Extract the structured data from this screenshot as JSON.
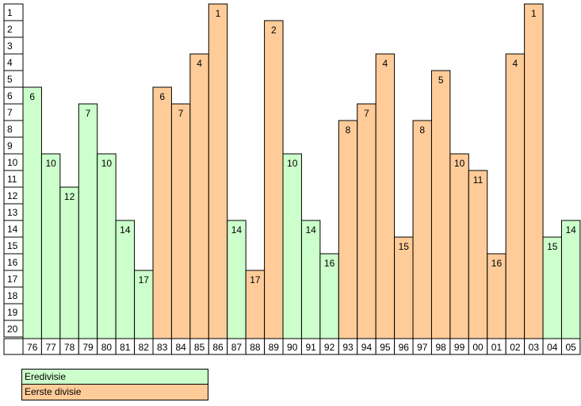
{
  "chart_data": {
    "type": "bar",
    "title": "",
    "xlabel": "",
    "ylabel": "",
    "ylim": [
      1,
      20
    ],
    "y_ticks": [
      "1",
      "2",
      "3",
      "4",
      "5",
      "6",
      "7",
      "8",
      "9",
      "10",
      "11",
      "12",
      "13",
      "14",
      "15",
      "16",
      "17",
      "18",
      "19",
      "20"
    ],
    "y_inverted": true,
    "categories": [
      "76",
      "77",
      "78",
      "79",
      "80",
      "81",
      "82",
      "83",
      "84",
      "85",
      "86",
      "87",
      "88",
      "89",
      "90",
      "91",
      "92",
      "93",
      "94",
      "95",
      "96",
      "97",
      "98",
      "99",
      "00",
      "01",
      "02",
      "03",
      "04",
      "05"
    ],
    "values": [
      6,
      10,
      12,
      7,
      10,
      14,
      17,
      6,
      7,
      4,
      1,
      14,
      17,
      2,
      10,
      14,
      16,
      8,
      7,
      4,
      15,
      8,
      5,
      10,
      11,
      16,
      4,
      1,
      15,
      14
    ],
    "league": [
      "Eredivisie",
      "Eredivisie",
      "Eredivisie",
      "Eredivisie",
      "Eredivisie",
      "Eredivisie",
      "Eredivisie",
      "Eerste divisie",
      "Eerste divisie",
      "Eerste divisie",
      "Eerste divisie",
      "Eredivisie",
      "Eerste divisie",
      "Eerste divisie",
      "Eredivisie",
      "Eredivisie",
      "Eredivisie",
      "Eerste divisie",
      "Eerste divisie",
      "Eerste divisie",
      "Eerste divisie",
      "Eerste divisie",
      "Eerste divisie",
      "Eerste divisie",
      "Eerste divisie",
      "Eerste divisie",
      "Eerste divisie",
      "Eerste divisie",
      "Eredivisie",
      "Eredivisie"
    ],
    "legend": {
      "placement": "bottom-left",
      "entries": [
        {
          "name": "Eredivisie",
          "color": "#ccffcc"
        },
        {
          "name": "Eerste divisie",
          "color": "#ffcc99"
        }
      ]
    },
    "grid": false
  }
}
